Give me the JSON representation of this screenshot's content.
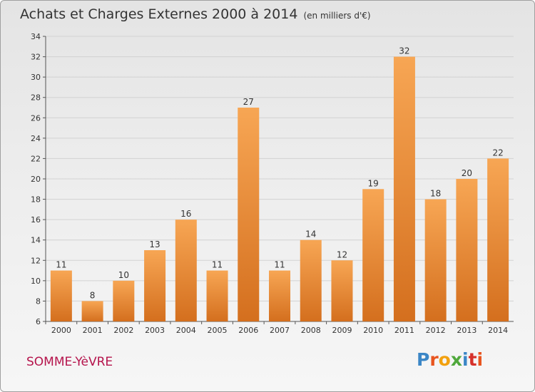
{
  "title": "Achats et Charges Externes 2000 à 2014",
  "unit": "(en milliers d'€)",
  "commune": "SOMME-YèVRE",
  "logo_text": "Proxiti",
  "colors": {
    "bar_top": "#f7a654",
    "bar_bottom": "#d46f1e",
    "commune": "#b5144c",
    "logo": [
      "#3b86c6",
      "#e8541e",
      "#f2a10f",
      "#4fa83b",
      "#3b86c6",
      "#d6302a",
      "#e8541e"
    ]
  },
  "chart_data": {
    "type": "bar",
    "title": "Achats et Charges Externes 2000 à 2014",
    "subtitle": "(en milliers d'€)",
    "categories": [
      "2000",
      "2001",
      "2002",
      "2003",
      "2004",
      "2005",
      "2006",
      "2007",
      "2008",
      "2009",
      "2010",
      "2011",
      "2012",
      "2013",
      "2014"
    ],
    "values": [
      11,
      8,
      10,
      13,
      16,
      11,
      27,
      11,
      14,
      12,
      19,
      32,
      18,
      20,
      22
    ],
    "data_labels": [
      "11",
      "8",
      "10",
      "13",
      "16",
      "11",
      "27",
      "11",
      "14",
      "12",
      "19",
      "32",
      "18",
      "20",
      "22"
    ],
    "ylim": [
      6,
      34
    ],
    "yticks": [
      6,
      8,
      10,
      12,
      14,
      16,
      18,
      20,
      22,
      24,
      26,
      28,
      30,
      32,
      34
    ],
    "grid": true,
    "legend": "none"
  }
}
